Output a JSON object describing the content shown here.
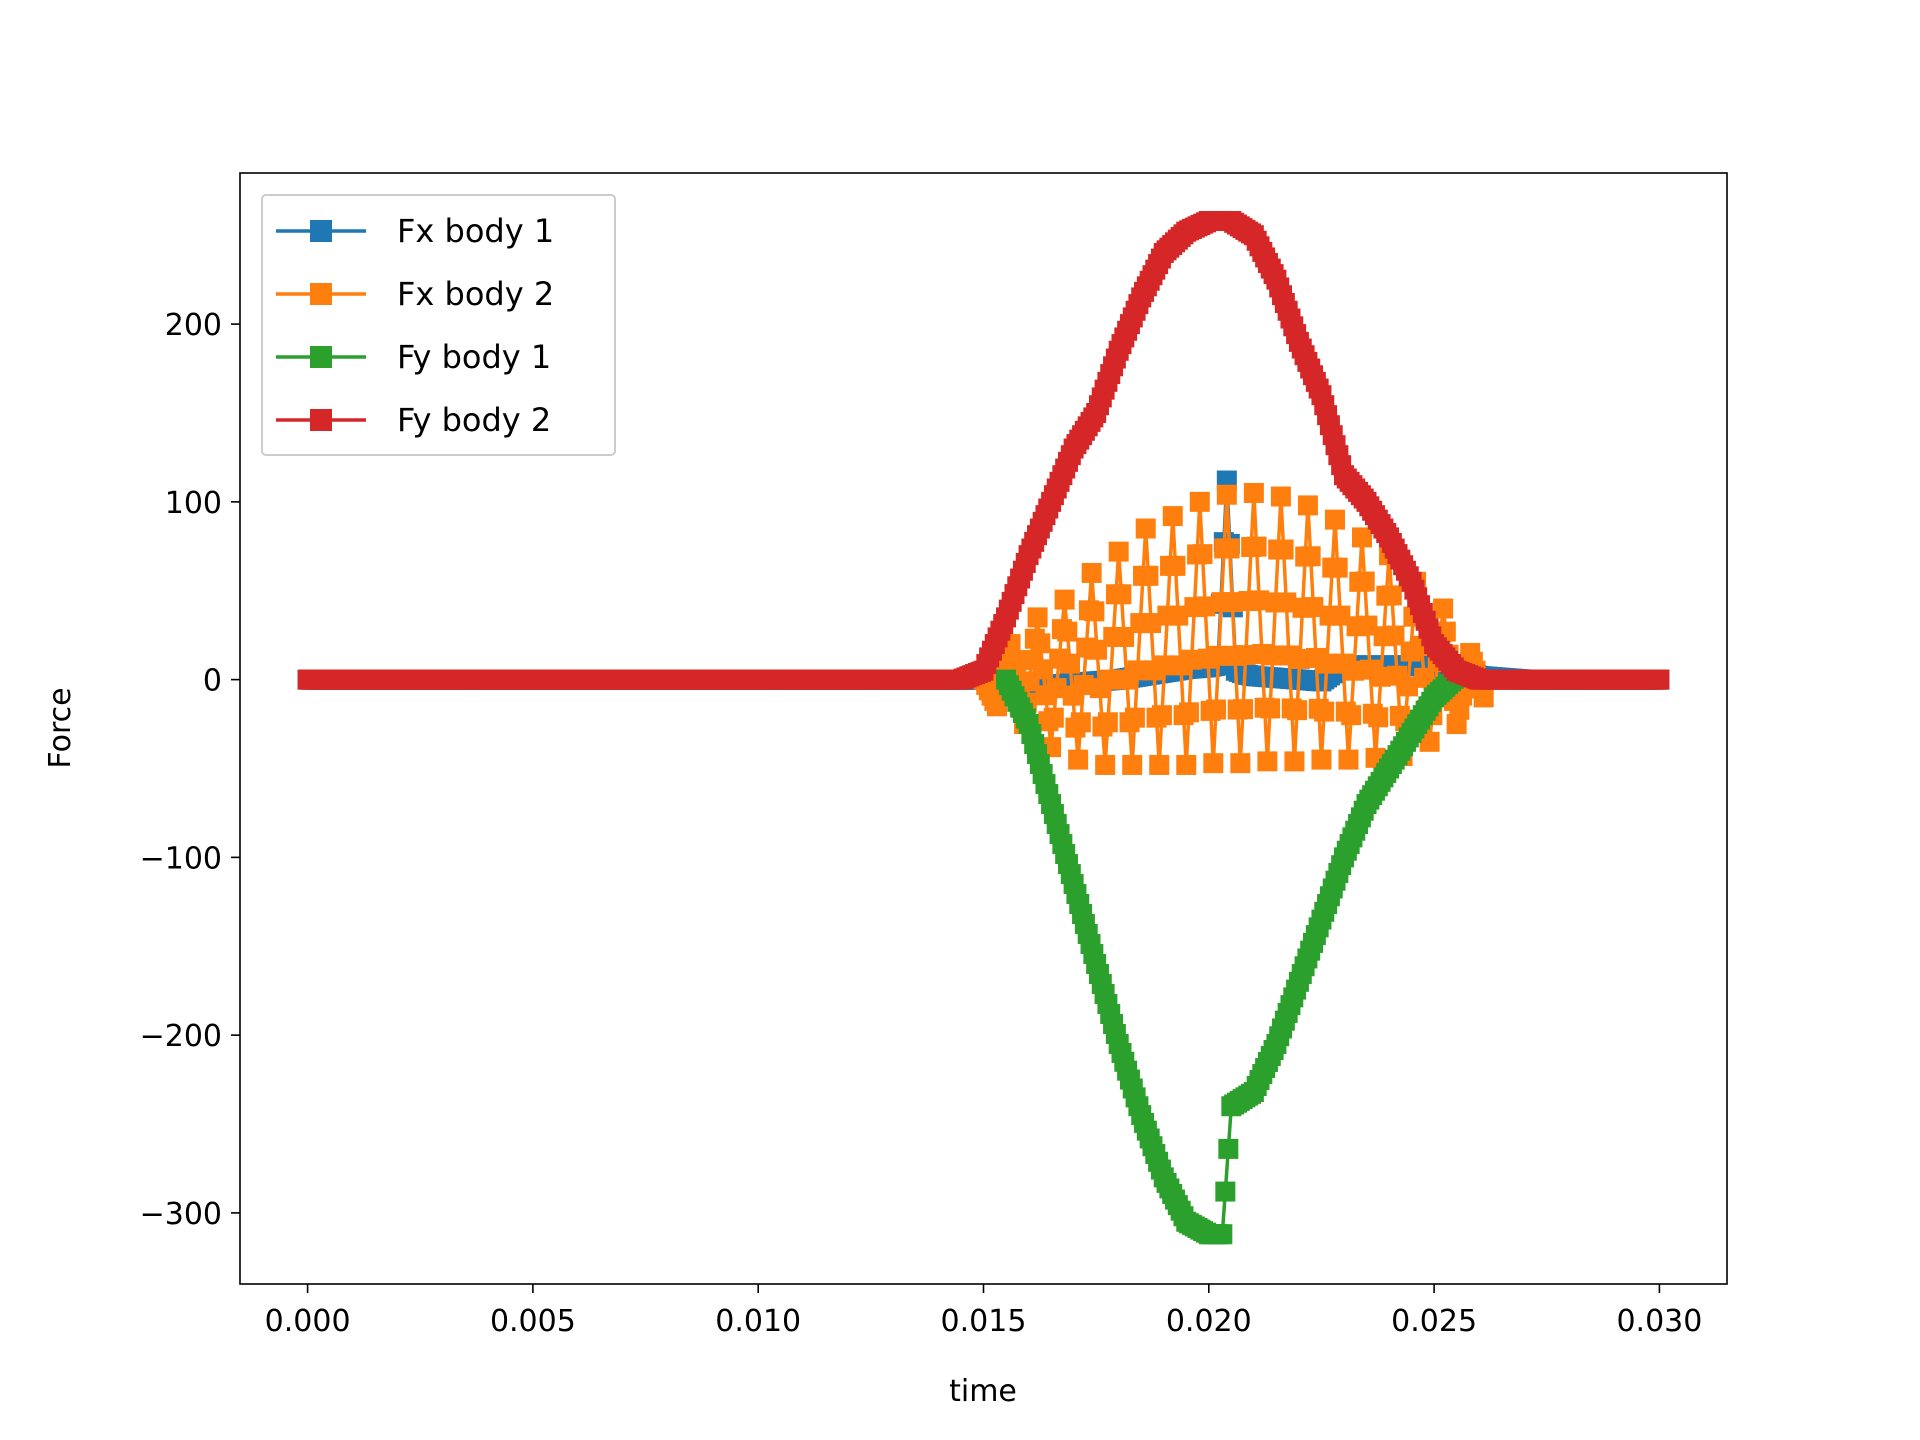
{
  "chart_data": {
    "type": "line",
    "title": "",
    "xlabel": "time",
    "ylabel": "Force",
    "xlim": [
      -0.0015,
      0.0315
    ],
    "ylim": [
      -340,
      285
    ],
    "xticks": [
      0.0,
      0.005,
      0.01,
      0.015,
      0.02,
      0.025,
      0.03
    ],
    "xtick_labels": [
      "0.000",
      "0.005",
      "0.010",
      "0.015",
      "0.020",
      "0.025",
      "0.030"
    ],
    "yticks": [
      -300,
      -200,
      -100,
      0,
      100,
      200
    ],
    "ytick_labels": [
      "−300",
      "−200",
      "−100",
      "0",
      "100",
      "200"
    ],
    "grid": false,
    "legend_position": "upper-left",
    "marker": "square",
    "series": [
      {
        "name": "Fx body 1",
        "color": "#1f77b4",
        "x": [
          0.0,
          0.005,
          0.01,
          0.015,
          0.0155,
          0.016,
          0.0165,
          0.017,
          0.0175,
          0.018,
          0.0185,
          0.019,
          0.0195,
          0.02,
          0.0202,
          0.0204,
          0.0206,
          0.0208,
          0.021,
          0.0215,
          0.022,
          0.0225,
          0.023,
          0.0235,
          0.024,
          0.0245,
          0.025,
          0.0255,
          0.026,
          0.027,
          0.03
        ],
        "y": [
          0,
          0,
          0,
          0,
          -2,
          -3,
          -3,
          -2,
          -1,
          0,
          2,
          4,
          6,
          7,
          8,
          112,
          5,
          3,
          2,
          1,
          0,
          -1,
          8,
          8,
          8,
          8,
          7,
          6,
          2,
          0,
          0
        ]
      },
      {
        "name": "Fx body 2",
        "color": "#ff7f0e",
        "x": [
          0.015,
          0.0153,
          0.0156,
          0.0159,
          0.0162,
          0.0165,
          0.0168,
          0.0171,
          0.0174,
          0.0177,
          0.018,
          0.0183,
          0.0186,
          0.0189,
          0.0192,
          0.0195,
          0.0198,
          0.0201,
          0.0204,
          0.0207,
          0.021,
          0.0213,
          0.0216,
          0.0219,
          0.0222,
          0.0225,
          0.0228,
          0.0231,
          0.0234,
          0.0237,
          0.024,
          0.0243,
          0.0246,
          0.0249,
          0.0252,
          0.0255,
          0.0258,
          0.0261
        ],
        "y": [
          0,
          -15,
          20,
          -25,
          35,
          -38,
          45,
          -45,
          60,
          -48,
          72,
          -48,
          85,
          -48,
          92,
          -48,
          100,
          -47,
          104,
          -47,
          105,
          -46,
          103,
          -46,
          98,
          -45,
          90,
          -45,
          80,
          -44,
          70,
          -43,
          55,
          -35,
          40,
          -25,
          15,
          -10
        ]
      },
      {
        "name": "Fy body 1",
        "color": "#2ca02c",
        "x": [
          0.0155,
          0.016,
          0.0165,
          0.017,
          0.0175,
          0.018,
          0.0185,
          0.019,
          0.0195,
          0.02,
          0.0203,
          0.0205,
          0.021,
          0.0215,
          0.022,
          0.0225,
          0.023,
          0.0235,
          0.024,
          0.0245,
          0.025,
          0.0255
        ],
        "y": [
          0,
          -25,
          -70,
          -115,
          -160,
          -205,
          -245,
          -280,
          -305,
          -312,
          -312,
          -240,
          -232,
          -205,
          -170,
          -135,
          -100,
          -70,
          -50,
          -30,
          -10,
          2
        ]
      },
      {
        "name": "Fy body 2",
        "color": "#d62728",
        "x": [
          0.0,
          0.005,
          0.01,
          0.0145,
          0.015,
          0.0155,
          0.016,
          0.0165,
          0.017,
          0.0175,
          0.018,
          0.0185,
          0.019,
          0.0195,
          0.02,
          0.0205,
          0.021,
          0.0215,
          0.022,
          0.0225,
          0.023,
          0.0235,
          0.024,
          0.0245,
          0.025,
          0.0255,
          0.026,
          0.027,
          0.03
        ],
        "y": [
          0,
          0,
          0,
          0,
          5,
          35,
          70,
          100,
          130,
          150,
          185,
          215,
          240,
          252,
          258,
          258,
          250,
          225,
          190,
          160,
          115,
          100,
          80,
          55,
          20,
          5,
          0,
          0,
          0
        ]
      }
    ]
  }
}
